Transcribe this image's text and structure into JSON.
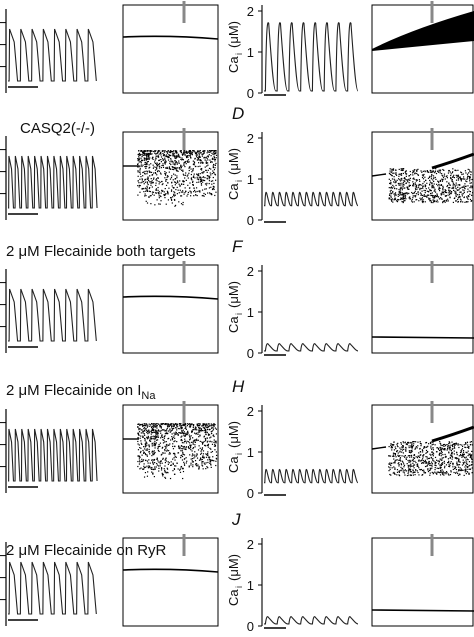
{
  "figure": {
    "rows": [
      {
        "row_label": "",
        "row_label_sub": "",
        "right_letter": "",
        "ap_beats": 8,
        "ca_beats": 8,
        "ca_peak": 1.75,
        "ca_base": 0.05,
        "phase_ap": "line",
        "phase_ca": "band",
        "ca_ticks": [
          "0",
          "1",
          "2"
        ],
        "ca_axis_label": "Ca",
        "ca_axis_sub": "i",
        "ca_axis_unit": "(μM)"
      },
      {
        "row_label": "CASQ2(-/-)",
        "row_label_sub": "",
        "right_letter": "D",
        "ap_beats": 14,
        "ca_beats": 14,
        "ca_peak": 0.7,
        "ca_base": 0.35,
        "phase_ap": "scatter",
        "phase_ca": "scatter",
        "ca_ticks": [
          "0",
          "1",
          "2"
        ],
        "ca_axis_label": "Ca",
        "ca_axis_sub": "i",
        "ca_axis_unit": "(μM)"
      },
      {
        "row_label": "2 μM Flecainide both targets",
        "row_label_sub": "",
        "right_letter": "F",
        "ap_beats": 8,
        "ca_beats": 8,
        "ca_peak": 0.25,
        "ca_base": 0.05,
        "phase_ap": "line",
        "phase_ca": "line",
        "ca_ticks": [
          "0",
          "1",
          "2"
        ],
        "ca_axis_label": "Ca",
        "ca_axis_sub": "i",
        "ca_axis_unit": "(μM)"
      },
      {
        "row_label": "2 μM Flecainide on I",
        "row_label_sub": "Na",
        "right_letter": "H",
        "ap_beats": 14,
        "ca_beats": 14,
        "ca_peak": 0.6,
        "ca_base": 0.25,
        "phase_ap": "scatter",
        "phase_ca": "scatter",
        "ca_ticks": [
          "0",
          "1",
          "2"
        ],
        "ca_axis_label": "Ca",
        "ca_axis_sub": "i",
        "ca_axis_unit": "(μM)"
      },
      {
        "row_label": "2 μM Flecainide on RyR",
        "row_label_sub": "",
        "right_letter": "J",
        "ap_beats": 8,
        "ca_beats": 8,
        "ca_peak": 0.25,
        "ca_base": 0.05,
        "phase_ap": "line",
        "phase_ca": "line",
        "ca_ticks": [
          "0",
          "1",
          "2"
        ],
        "ca_axis_label": "Ca",
        "ca_axis_sub": "i",
        "ca_axis_unit": "(μM)"
      }
    ]
  },
  "chart_data": [
    {
      "type": "line",
      "title": "",
      "ylabel": "Ca_i (μM)",
      "ylim": [
        0,
        2
      ],
      "series": [
        {
          "values": [
            0.05,
            1.75,
            0.05,
            1.75,
            0.05,
            1.75,
            0.05,
            1.75,
            0.05,
            1.75,
            0.05,
            1.75,
            0.05,
            1.75,
            0.05,
            1.75
          ]
        }
      ]
    },
    {
      "type": "line",
      "title": "",
      "ylabel": "Ca_i (μM)",
      "ylim": [
        0,
        2
      ],
      "series": [
        {
          "values": [
            0.35,
            0.7,
            0.35,
            0.7,
            0.35,
            0.7,
            0.35,
            0.7
          ]
        }
      ]
    },
    {
      "type": "line",
      "title": "",
      "ylabel": "Ca_i (μM)",
      "ylim": [
        0,
        2
      ],
      "series": [
        {
          "values": [
            0.05,
            0.25,
            0.05,
            0.25,
            0.05,
            0.25,
            0.05,
            0.25
          ]
        }
      ]
    },
    {
      "type": "line",
      "title": "",
      "ylabel": "Ca_i (μM)",
      "ylim": [
        0,
        2
      ],
      "series": [
        {
          "values": [
            0.25,
            0.6,
            0.25,
            0.6,
            0.25,
            0.6,
            0.25,
            0.6
          ]
        }
      ]
    },
    {
      "type": "line",
      "title": "",
      "ylabel": "Ca_i (μM)",
      "ylim": [
        0,
        2
      ],
      "series": [
        {
          "values": [
            0.05,
            0.25,
            0.05,
            0.25,
            0.05,
            0.25,
            0.05,
            0.25
          ]
        }
      ]
    }
  ]
}
